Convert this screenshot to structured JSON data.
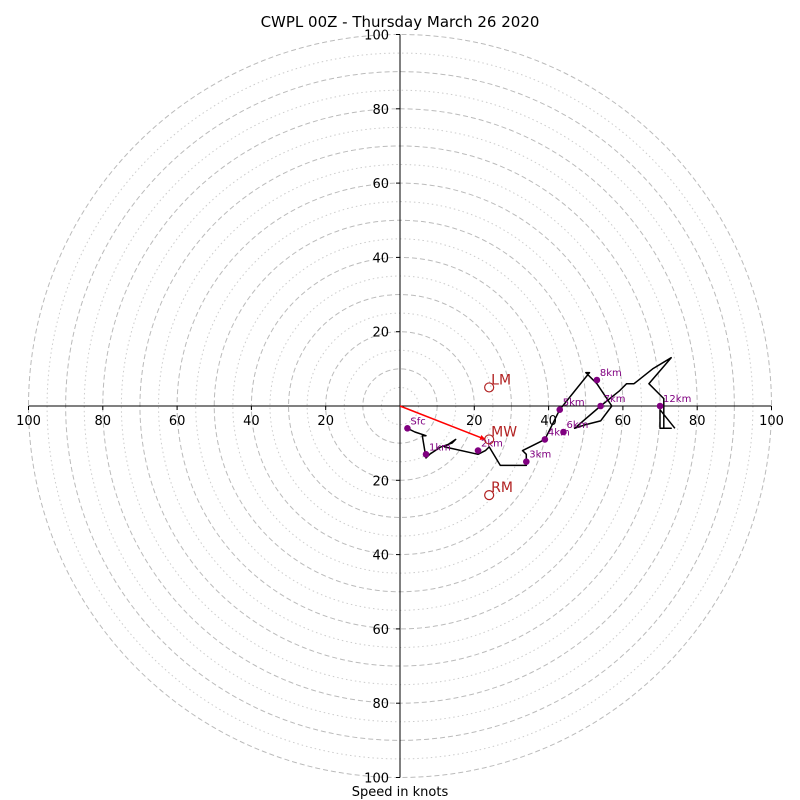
{
  "chart_data": {
    "type": "hodograph",
    "title": "CWPL 00Z - Thursday March 26 2020",
    "xlabel": "Speed in knots",
    "xlim": [
      -100,
      100
    ],
    "ylim": [
      -100,
      100
    ],
    "major_rings": [
      10,
      20,
      30,
      40,
      50,
      60,
      70,
      80,
      90,
      100
    ],
    "minor_rings": [
      5,
      15,
      25,
      35,
      45,
      55,
      65,
      75,
      85,
      95
    ],
    "x_ticks": [
      {
        "value": -100,
        "label": "100"
      },
      {
        "value": -80,
        "label": "80"
      },
      {
        "value": -60,
        "label": "60"
      },
      {
        "value": -40,
        "label": "40"
      },
      {
        "value": -20,
        "label": "20"
      },
      {
        "value": 20,
        "label": "20"
      },
      {
        "value": 40,
        "label": "40"
      },
      {
        "value": 60,
        "label": "60"
      },
      {
        "value": 80,
        "label": "80"
      },
      {
        "value": 100,
        "label": "100"
      }
    ],
    "y_ticks": [
      {
        "value": 100,
        "label": "100"
      },
      {
        "value": 80,
        "label": "80"
      },
      {
        "value": 60,
        "label": "60"
      },
      {
        "value": 40,
        "label": "40"
      },
      {
        "value": 20,
        "label": "20"
      },
      {
        "value": -20,
        "label": "20"
      },
      {
        "value": -40,
        "label": "40"
      },
      {
        "value": -60,
        "label": "60"
      },
      {
        "value": -80,
        "label": "80"
      },
      {
        "value": -100,
        "label": "100"
      }
    ],
    "trace": [
      [
        2,
        -6
      ],
      [
        4,
        -7
      ],
      [
        7,
        -8
      ],
      [
        6,
        -8
      ],
      [
        7,
        -14
      ],
      [
        8,
        -13
      ],
      [
        11,
        -11
      ],
      [
        14,
        -10
      ],
      [
        15,
        -9
      ],
      [
        12,
        -11
      ],
      [
        21,
        -13
      ],
      [
        23,
        -12
      ],
      [
        24,
        -11
      ],
      [
        27,
        -16
      ],
      [
        34,
        -16
      ],
      [
        34,
        -13
      ],
      [
        33,
        -12
      ],
      [
        39,
        -9
      ],
      [
        43,
        -1
      ],
      [
        47,
        4
      ],
      [
        51,
        9
      ],
      [
        50,
        9
      ],
      [
        53,
        6
      ],
      [
        57,
        0
      ],
      [
        54,
        -4
      ],
      [
        50,
        -5
      ],
      [
        47,
        -6
      ],
      [
        54,
        0
      ],
      [
        59,
        4
      ],
      [
        61,
        6
      ],
      [
        63,
        6
      ],
      [
        68,
        10
      ],
      [
        73,
        13
      ],
      [
        67,
        6
      ],
      [
        71,
        2
      ],
      [
        71,
        -6
      ],
      [
        72,
        -6
      ],
      [
        73,
        -6
      ],
      [
        71,
        -6
      ],
      [
        70,
        -6
      ],
      [
        70,
        -1
      ],
      [
        74,
        -6
      ]
    ],
    "height_markers": [
      {
        "label": "Sfc",
        "u": 2,
        "v": -6
      },
      {
        "label": "1km",
        "u": 7,
        "v": -13
      },
      {
        "label": "2km",
        "u": 21,
        "v": -12
      },
      {
        "label": "3km",
        "u": 34,
        "v": -15
      },
      {
        "label": "4km",
        "u": 39,
        "v": -9
      },
      {
        "label": "5km",
        "u": 43,
        "v": -1
      },
      {
        "label": "6km",
        "u": 44,
        "v": -7
      },
      {
        "label": "7km",
        "u": 54,
        "v": 0
      },
      {
        "label": "8km",
        "u": 53,
        "v": 7
      },
      {
        "label": "12km",
        "u": 70,
        "v": 0
      }
    ],
    "storm_motions": [
      {
        "label": "LM",
        "u": 24,
        "v": 5
      },
      {
        "label": "MW",
        "u": 24,
        "v": -9
      },
      {
        "label": "RM",
        "u": 24,
        "v": -24
      }
    ],
    "shear_vector": {
      "from": [
        0,
        0
      ],
      "to": [
        23,
        -9
      ]
    },
    "colors": {
      "trace": "#000000",
      "markers": "#800080",
      "motion": "#b22222",
      "shear": "#ff0000",
      "major_ring": "#bbbbbb",
      "minor_ring": "#cccccc",
      "axis": "#000000"
    }
  }
}
